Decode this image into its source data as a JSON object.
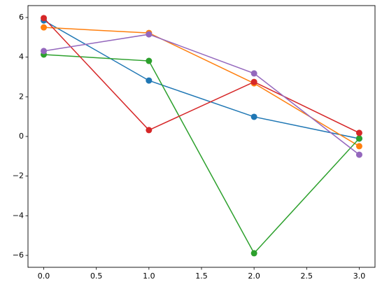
{
  "chart_data": {
    "type": "line",
    "x": [
      0,
      1,
      2,
      3
    ],
    "series": [
      {
        "color": "#1f77b4",
        "values": [
          5.85,
          2.82,
          0.99,
          -0.11
        ]
      },
      {
        "color": "#ff7f0e",
        "values": [
          5.5,
          5.22,
          2.68,
          -0.49
        ]
      },
      {
        "color": "#2ca02c",
        "values": [
          4.13,
          3.81,
          -5.89,
          -0.1
        ]
      },
      {
        "color": "#d62728",
        "values": [
          5.97,
          0.32,
          2.75,
          0.18
        ]
      },
      {
        "color": "#9467bd",
        "values": [
          4.31,
          5.15,
          3.18,
          -0.92
        ]
      }
    ],
    "xlim": [
      -0.15,
      3.15
    ],
    "ylim": [
      -6.6,
      6.6
    ],
    "xticks": [
      {
        "value": 0,
        "label": "0.0"
      },
      {
        "value": 0.5,
        "label": "0.5"
      },
      {
        "value": 1,
        "label": "1.0"
      },
      {
        "value": 1.5,
        "label": "1.5"
      },
      {
        "value": 2,
        "label": "2.0"
      },
      {
        "value": 2.5,
        "label": "2.5"
      },
      {
        "value": 3,
        "label": "3.0"
      }
    ],
    "yticks": [
      {
        "value": -6,
        "label": "−6"
      },
      {
        "value": -4,
        "label": "−4"
      },
      {
        "value": -2,
        "label": "−2"
      },
      0,
      2,
      4,
      6
    ],
    "grid": false,
    "markers": true
  }
}
